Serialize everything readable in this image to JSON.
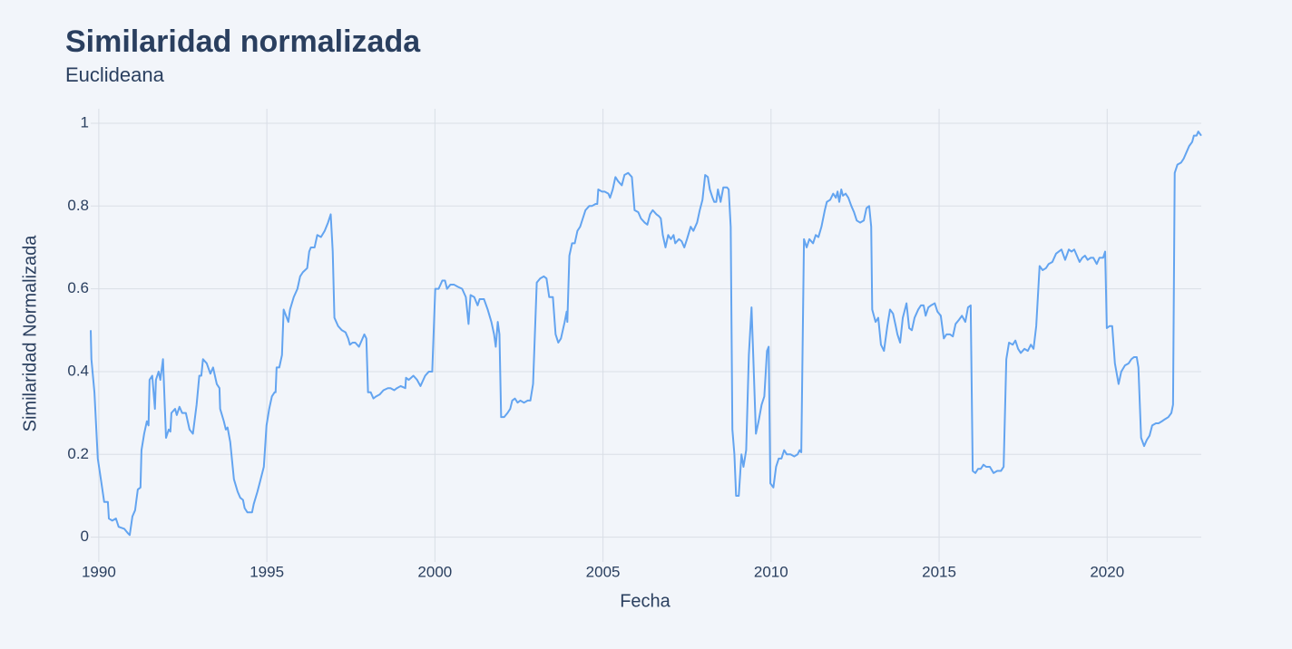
{
  "chart_data": {
    "type": "line",
    "title": "Similaridad normalizada",
    "subtitle": "Euclideana",
    "x_label": "Fecha",
    "y_label": "Similaridad Normalizada",
    "color": "#63a4f0",
    "grid": true,
    "xlim": [
      1989.76,
      2022.8
    ],
    "ylim": [
      -0.06,
      1.035
    ],
    "xticks": [
      1990,
      1995,
      2000,
      2005,
      2010,
      2015,
      2020
    ],
    "yticks": [
      0,
      0.2,
      0.4,
      0.6,
      0.8,
      1
    ],
    "x": [
      1989.76,
      1989.78,
      1989.87,
      1989.97,
      1990.08,
      1990.16,
      1990.27,
      1990.3,
      1990.4,
      1990.51,
      1990.59,
      1990.76,
      1990.86,
      1990.92,
      1991.0,
      1991.08,
      1991.16,
      1991.24,
      1991.27,
      1991.35,
      1991.43,
      1991.48,
      1991.51,
      1991.59,
      1991.67,
      1991.7,
      1991.78,
      1991.83,
      1991.91,
      1992.0,
      1992.08,
      1992.13,
      1992.16,
      1992.27,
      1992.32,
      1992.4,
      1992.48,
      1992.59,
      1992.7,
      1992.8,
      1992.91,
      1992.99,
      1993.05,
      1993.1,
      1993.21,
      1993.32,
      1993.4,
      1993.51,
      1993.59,
      1993.61,
      1993.72,
      1993.78,
      1993.83,
      1993.91,
      1994.02,
      1994.13,
      1994.21,
      1994.29,
      1994.34,
      1994.42,
      1994.56,
      1994.61,
      1994.72,
      1994.8,
      1994.91,
      1994.99,
      1995.07,
      1995.15,
      1995.23,
      1995.26,
      1995.29,
      1995.37,
      1995.45,
      1995.5,
      1995.64,
      1995.69,
      1995.8,
      1995.91,
      1995.99,
      1996.07,
      1996.2,
      1996.26,
      1996.31,
      1996.42,
      1996.5,
      1996.61,
      1996.72,
      1996.82,
      1996.9,
      1996.96,
      1997.01,
      1997.12,
      1997.23,
      1997.34,
      1997.42,
      1997.47,
      1997.55,
      1997.63,
      1997.74,
      1997.82,
      1997.9,
      1997.96,
      1998.01,
      1998.09,
      1998.17,
      1998.25,
      1998.36,
      1998.47,
      1998.6,
      1998.68,
      1998.79,
      1998.87,
      1998.98,
      1999.12,
      1999.14,
      1999.22,
      1999.36,
      1999.47,
      1999.57,
      1999.71,
      1999.82,
      1999.92,
      2000.01,
      2000.11,
      2000.22,
      2000.3,
      2000.36,
      2000.46,
      2000.57,
      2000.68,
      2000.81,
      2000.92,
      2001.0,
      2001.06,
      2001.17,
      2001.22,
      2001.27,
      2001.33,
      2001.46,
      2001.57,
      2001.68,
      2001.76,
      2001.81,
      2001.87,
      2001.92,
      2001.97,
      2002.06,
      2002.16,
      2002.24,
      2002.3,
      2002.38,
      2002.46,
      2002.54,
      2002.65,
      2002.76,
      2002.84,
      2002.92,
      2003.03,
      2003.13,
      2003.24,
      2003.32,
      2003.4,
      2003.51,
      2003.59,
      2003.67,
      2003.75,
      2003.86,
      2003.92,
      2003.94,
      2004.0,
      2004.08,
      2004.16,
      2004.24,
      2004.32,
      2004.4,
      2004.48,
      2004.59,
      2004.67,
      2004.78,
      2004.83,
      2004.86,
      2004.97,
      2005.05,
      2005.16,
      2005.21,
      2005.29,
      2005.37,
      2005.45,
      2005.56,
      2005.64,
      2005.75,
      2005.86,
      2005.94,
      2006.05,
      2006.13,
      2006.24,
      2006.32,
      2006.4,
      2006.48,
      2006.59,
      2006.67,
      2006.72,
      2006.78,
      2006.86,
      2006.94,
      2007.02,
      2007.1,
      2007.15,
      2007.26,
      2007.34,
      2007.42,
      2007.5,
      2007.61,
      2007.69,
      2007.8,
      2007.88,
      2007.96,
      2008.04,
      2008.12,
      2008.18,
      2008.26,
      2008.31,
      2008.37,
      2008.42,
      2008.5,
      2008.58,
      2008.69,
      2008.74,
      2008.8,
      2008.85,
      2008.91,
      2008.96,
      2009.04,
      2009.12,
      2009.18,
      2009.26,
      2009.34,
      2009.42,
      2009.47,
      2009.55,
      2009.63,
      2009.72,
      2009.8,
      2009.88,
      2009.93,
      2009.98,
      2010.07,
      2010.15,
      2010.23,
      2010.31,
      2010.39,
      2010.47,
      2010.58,
      2010.69,
      2010.79,
      2010.85,
      2010.9,
      2010.98,
      2011.06,
      2011.14,
      2011.25,
      2011.33,
      2011.41,
      2011.5,
      2011.6,
      2011.66,
      2011.76,
      2011.85,
      2011.93,
      2011.98,
      2012.03,
      2012.09,
      2012.14,
      2012.22,
      2012.3,
      2012.39,
      2012.47,
      2012.55,
      2012.65,
      2012.76,
      2012.84,
      2012.92,
      2012.98,
      2013.01,
      2013.11,
      2013.19,
      2013.27,
      2013.36,
      2013.46,
      2013.54,
      2013.63,
      2013.71,
      2013.76,
      2013.84,
      2013.92,
      2014.03,
      2014.11,
      2014.19,
      2014.27,
      2014.38,
      2014.46,
      2014.54,
      2014.6,
      2014.68,
      2014.76,
      2014.87,
      2014.95,
      2015.05,
      2015.14,
      2015.22,
      2015.32,
      2015.41,
      2015.49,
      2015.59,
      2015.68,
      2015.78,
      2015.86,
      2015.94,
      2016.0,
      2016.08,
      2016.16,
      2016.24,
      2016.32,
      2016.4,
      2016.51,
      2016.62,
      2016.73,
      2016.84,
      2016.92,
      2017.0,
      2017.08,
      2017.19,
      2017.27,
      2017.35,
      2017.43,
      2017.54,
      2017.64,
      2017.73,
      2017.81,
      2017.89,
      2017.99,
      2018.08,
      2018.18,
      2018.26,
      2018.37,
      2018.48,
      2018.56,
      2018.64,
      2018.75,
      2018.86,
      2018.94,
      2019.02,
      2019.1,
      2019.18,
      2019.26,
      2019.34,
      2019.42,
      2019.51,
      2019.59,
      2019.69,
      2019.77,
      2019.88,
      2019.94,
      2019.99,
      2020.07,
      2020.15,
      2020.23,
      2020.34,
      2020.42,
      2020.53,
      2020.64,
      2020.72,
      2020.8,
      2020.88,
      2020.93,
      2021.01,
      2021.1,
      2021.18,
      2021.26,
      2021.34,
      2021.45,
      2021.53,
      2021.63,
      2021.72,
      2021.82,
      2021.91,
      2021.96,
      2022.01,
      2022.09,
      2022.2,
      2022.28,
      2022.36,
      2022.44,
      2022.53,
      2022.58,
      2022.66,
      2022.71,
      2022.8
    ],
    "values": [
      0.5,
      0.43,
      0.35,
      0.19,
      0.13,
      0.085,
      0.085,
      0.045,
      0.04,
      0.045,
      0.025,
      0.02,
      0.01,
      0.005,
      0.05,
      0.065,
      0.115,
      0.12,
      0.21,
      0.25,
      0.28,
      0.27,
      0.38,
      0.39,
      0.31,
      0.38,
      0.4,
      0.38,
      0.43,
      0.24,
      0.26,
      0.255,
      0.3,
      0.31,
      0.295,
      0.315,
      0.3,
      0.3,
      0.26,
      0.25,
      0.32,
      0.39,
      0.39,
      0.43,
      0.42,
      0.395,
      0.41,
      0.37,
      0.36,
      0.31,
      0.28,
      0.26,
      0.265,
      0.23,
      0.14,
      0.11,
      0.095,
      0.09,
      0.07,
      0.06,
      0.06,
      0.08,
      0.11,
      0.135,
      0.17,
      0.27,
      0.31,
      0.34,
      0.35,
      0.35,
      0.41,
      0.41,
      0.44,
      0.55,
      0.52,
      0.55,
      0.58,
      0.6,
      0.63,
      0.64,
      0.65,
      0.69,
      0.7,
      0.7,
      0.73,
      0.725,
      0.74,
      0.76,
      0.78,
      0.69,
      0.53,
      0.51,
      0.5,
      0.495,
      0.48,
      0.465,
      0.47,
      0.47,
      0.46,
      0.475,
      0.49,
      0.48,
      0.35,
      0.35,
      0.335,
      0.34,
      0.345,
      0.355,
      0.36,
      0.36,
      0.355,
      0.36,
      0.365,
      0.36,
      0.385,
      0.38,
      0.39,
      0.38,
      0.365,
      0.39,
      0.4,
      0.4,
      0.6,
      0.6,
      0.62,
      0.62,
      0.6,
      0.61,
      0.61,
      0.605,
      0.6,
      0.58,
      0.515,
      0.585,
      0.58,
      0.57,
      0.56,
      0.575,
      0.575,
      0.55,
      0.52,
      0.49,
      0.46,
      0.52,
      0.49,
      0.29,
      0.29,
      0.3,
      0.31,
      0.33,
      0.335,
      0.325,
      0.33,
      0.325,
      0.33,
      0.33,
      0.37,
      0.615,
      0.625,
      0.63,
      0.625,
      0.58,
      0.58,
      0.49,
      0.47,
      0.48,
      0.52,
      0.545,
      0.52,
      0.68,
      0.71,
      0.71,
      0.74,
      0.75,
      0.77,
      0.79,
      0.8,
      0.8,
      0.805,
      0.805,
      0.84,
      0.835,
      0.835,
      0.83,
      0.82,
      0.84,
      0.87,
      0.86,
      0.85,
      0.875,
      0.88,
      0.87,
      0.79,
      0.785,
      0.77,
      0.76,
      0.755,
      0.78,
      0.79,
      0.78,
      0.775,
      0.77,
      0.73,
      0.7,
      0.73,
      0.72,
      0.73,
      0.71,
      0.72,
      0.715,
      0.7,
      0.72,
      0.75,
      0.74,
      0.76,
      0.79,
      0.815,
      0.875,
      0.87,
      0.84,
      0.82,
      0.81,
      0.81,
      0.84,
      0.81,
      0.845,
      0.845,
      0.84,
      0.75,
      0.26,
      0.2,
      0.1,
      0.1,
      0.2,
      0.17,
      0.21,
      0.44,
      0.555,
      0.44,
      0.25,
      0.28,
      0.32,
      0.34,
      0.45,
      0.46,
      0.13,
      0.12,
      0.17,
      0.19,
      0.19,
      0.21,
      0.2,
      0.2,
      0.195,
      0.2,
      0.21,
      0.205,
      0.72,
      0.7,
      0.72,
      0.71,
      0.73,
      0.725,
      0.75,
      0.79,
      0.81,
      0.815,
      0.83,
      0.82,
      0.835,
      0.81,
      0.84,
      0.825,
      0.83,
      0.82,
      0.8,
      0.785,
      0.765,
      0.76,
      0.765,
      0.795,
      0.8,
      0.75,
      0.55,
      0.52,
      0.53,
      0.465,
      0.45,
      0.51,
      0.55,
      0.54,
      0.51,
      0.49,
      0.47,
      0.53,
      0.565,
      0.505,
      0.5,
      0.53,
      0.55,
      0.56,
      0.56,
      0.535,
      0.555,
      0.56,
      0.565,
      0.545,
      0.535,
      0.48,
      0.49,
      0.49,
      0.485,
      0.515,
      0.525,
      0.535,
      0.52,
      0.555,
      0.56,
      0.16,
      0.155,
      0.165,
      0.165,
      0.175,
      0.17,
      0.17,
      0.155,
      0.16,
      0.16,
      0.17,
      0.43,
      0.47,
      0.465,
      0.475,
      0.455,
      0.445,
      0.455,
      0.45,
      0.465,
      0.455,
      0.51,
      0.655,
      0.645,
      0.65,
      0.66,
      0.665,
      0.685,
      0.69,
      0.695,
      0.67,
      0.695,
      0.69,
      0.695,
      0.68,
      0.665,
      0.675,
      0.68,
      0.67,
      0.675,
      0.675,
      0.66,
      0.675,
      0.675,
      0.69,
      0.505,
      0.51,
      0.51,
      0.42,
      0.37,
      0.4,
      0.415,
      0.42,
      0.43,
      0.435,
      0.435,
      0.41,
      0.24,
      0.22,
      0.235,
      0.245,
      0.27,
      0.275,
      0.275,
      0.28,
      0.285,
      0.29,
      0.3,
      0.32,
      0.88,
      0.9,
      0.905,
      0.915,
      0.93,
      0.945,
      0.955,
      0.97,
      0.97,
      0.98,
      0.97
    ]
  }
}
